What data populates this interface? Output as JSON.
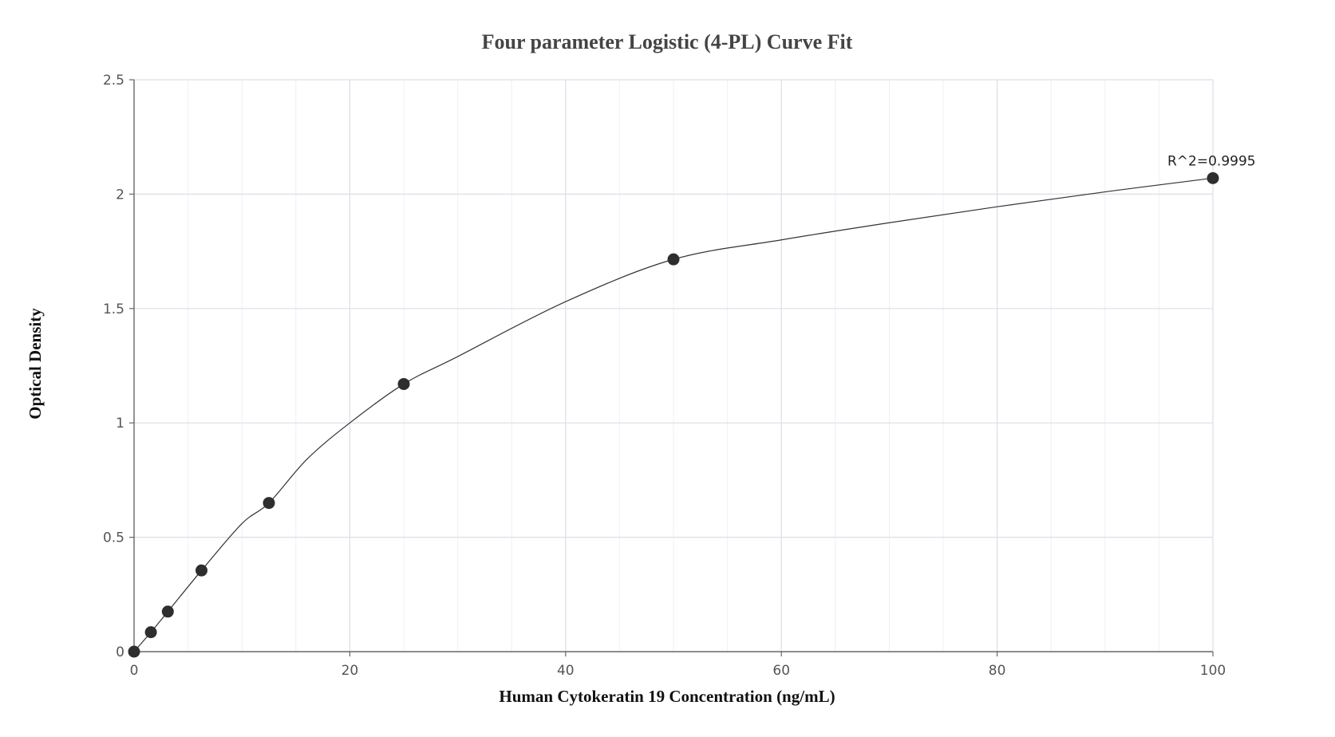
{
  "chart_data": {
    "type": "scatter",
    "title": "Four parameter Logistic (4-PL) Curve Fit",
    "xlabel": "Human Cytokeratin 19 Concentration (ng/mL)",
    "ylabel": "Optical Density",
    "xlim": [
      0,
      100
    ],
    "ylim": [
      0,
      2.5
    ],
    "x_ticks": [
      "0",
      "20",
      "40",
      "60",
      "80",
      "100"
    ],
    "y_ticks": [
      "0",
      "0.5",
      "1",
      "1.5",
      "2",
      "2.5"
    ],
    "grid": true,
    "series": [
      {
        "type": "scatter",
        "x": [
          0,
          1.56,
          3.13,
          6.25,
          12.5,
          25,
          50,
          100
        ],
        "y": [
          0,
          0.085,
          0.175,
          0.355,
          0.65,
          1.17,
          1.715,
          2.07
        ]
      },
      {
        "type": "line",
        "x": [
          0,
          1.56,
          3.13,
          6.25,
          10,
          12.5,
          16,
          20,
          25,
          30,
          40,
          50,
          60,
          70,
          80,
          90,
          100
        ],
        "y": [
          0,
          0.085,
          0.175,
          0.355,
          0.56,
          0.65,
          0.84,
          1.0,
          1.17,
          1.29,
          1.53,
          1.715,
          1.8,
          1.875,
          1.945,
          2.01,
          2.07
        ]
      }
    ],
    "annotations": [
      {
        "text": "R^2=0.9995",
        "x": 100,
        "y": 2.07
      }
    ]
  }
}
